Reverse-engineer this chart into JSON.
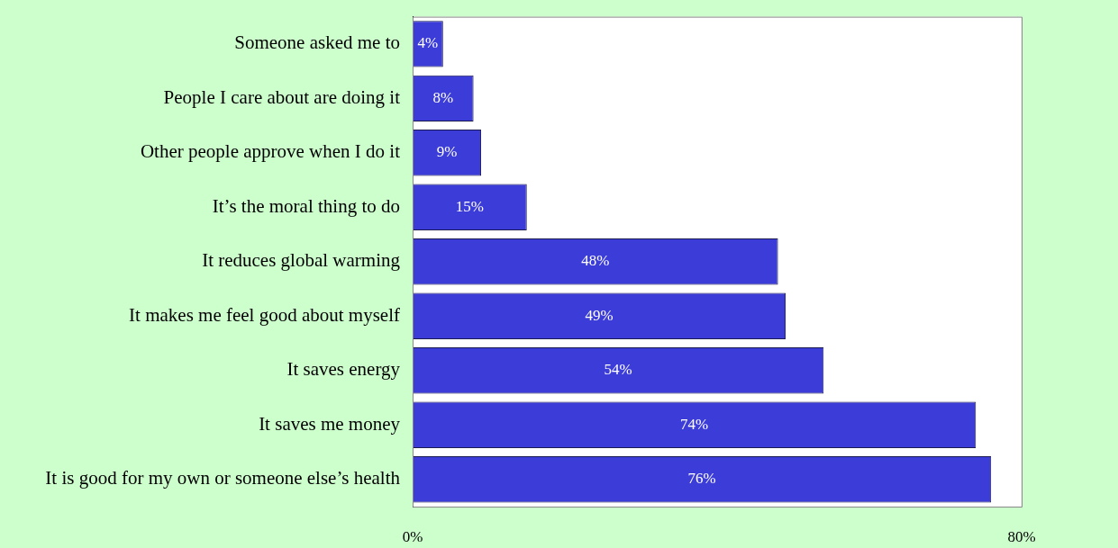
{
  "chart_data": {
    "type": "bar",
    "orientation": "horizontal",
    "categories": [
      "Someone asked me to",
      "People I care about are doing it",
      "Other people approve when I do it",
      "It’s the moral thing to do",
      "It reduces global warming",
      "It makes me feel good about myself",
      "It saves energy",
      "It saves me money",
      "It is good for my own or someone else’s health"
    ],
    "values": [
      4,
      8,
      9,
      15,
      48,
      49,
      54,
      74,
      76
    ],
    "value_labels": [
      "4%",
      "8%",
      "9%",
      "15%",
      "48%",
      "49%",
      "54%",
      "74%",
      "76%"
    ],
    "color": "#3c3cd8",
    "xlim": [
      0,
      80
    ],
    "xticks": [
      {
        "value": 0,
        "label": "0%"
      },
      {
        "value": 80,
        "label": "80%"
      }
    ],
    "grid": false,
    "legend": false
  }
}
